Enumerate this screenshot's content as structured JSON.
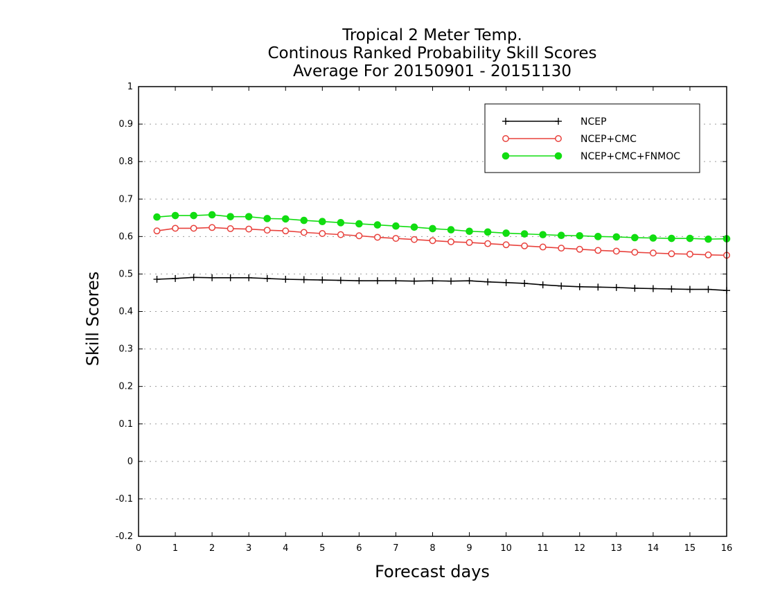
{
  "chart_data": {
    "type": "line",
    "title": [
      "Tropical 2 Meter Temp.",
      "Continous Ranked Probability Skill Scores",
      "Average For 20150901 - 20151130"
    ],
    "xlabel": "Forecast days",
    "ylabel": "Skill Scores",
    "xlim": [
      0,
      16
    ],
    "ylim": [
      -0.2,
      1
    ],
    "xticks": [
      0,
      1,
      2,
      3,
      4,
      5,
      6,
      7,
      8,
      9,
      10,
      11,
      12,
      13,
      14,
      15,
      16
    ],
    "xtick_labels": [
      "0",
      "1",
      "2",
      "3",
      "4",
      "5",
      "6",
      "7",
      "8",
      "9",
      "10",
      "11",
      "12",
      "13",
      "14",
      "15",
      "16"
    ],
    "yticks": [
      -0.2,
      -0.1,
      0,
      0.1,
      0.2,
      0.3,
      0.4,
      0.5,
      0.6,
      0.7,
      0.8,
      0.9,
      1
    ],
    "ytick_labels": [
      "-0.2",
      "-0.1",
      "0",
      "0.1",
      "0.2",
      "0.3",
      "0.4",
      "0.5",
      "0.6",
      "0.7",
      "0.8",
      "0.9",
      "1"
    ],
    "grid": "horizontal dotted",
    "legend_position": "top-right",
    "x": [
      0.5,
      1,
      1.5,
      2,
      2.5,
      3,
      3.5,
      4,
      4.5,
      5,
      5.5,
      6,
      6.5,
      7,
      7.5,
      8,
      8.5,
      9,
      9.5,
      10,
      10.5,
      11,
      11.5,
      12,
      12.5,
      13,
      13.5,
      14,
      14.5,
      15,
      15.5,
      16
    ],
    "series": [
      {
        "name": "NCEP",
        "color": "#000000",
        "marker": "plus",
        "values": [
          0.486,
          0.488,
          0.491,
          0.49,
          0.49,
          0.49,
          0.488,
          0.486,
          0.485,
          0.484,
          0.483,
          0.482,
          0.482,
          0.482,
          0.481,
          0.482,
          0.481,
          0.482,
          0.479,
          0.477,
          0.475,
          0.471,
          0.468,
          0.466,
          0.465,
          0.464,
          0.462,
          0.461,
          0.46,
          0.459,
          0.459,
          0.456
        ]
      },
      {
        "name": "NCEP+CMC",
        "color": "#e8413c",
        "marker": "open-circle",
        "values": [
          0.615,
          0.622,
          0.622,
          0.624,
          0.621,
          0.62,
          0.617,
          0.615,
          0.611,
          0.608,
          0.605,
          0.602,
          0.598,
          0.595,
          0.592,
          0.589,
          0.586,
          0.584,
          0.581,
          0.578,
          0.575,
          0.572,
          0.569,
          0.566,
          0.563,
          0.561,
          0.558,
          0.556,
          0.554,
          0.553,
          0.551,
          0.55
        ]
      },
      {
        "name": "NCEP+CMC+FNMOC",
        "color": "#11dd11",
        "marker": "filled-circle",
        "values": [
          0.652,
          0.656,
          0.656,
          0.658,
          0.653,
          0.653,
          0.648,
          0.647,
          0.643,
          0.64,
          0.637,
          0.634,
          0.631,
          0.628,
          0.625,
          0.621,
          0.618,
          0.614,
          0.612,
          0.609,
          0.607,
          0.605,
          0.603,
          0.602,
          0.6,
          0.599,
          0.597,
          0.596,
          0.595,
          0.595,
          0.593,
          0.594
        ]
      }
    ]
  }
}
